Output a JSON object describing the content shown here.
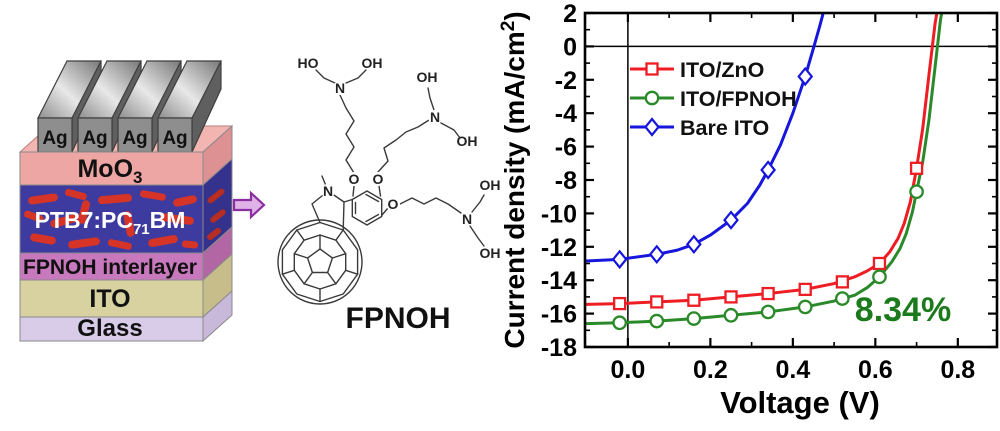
{
  "device": {
    "electrode_label": "Ag",
    "arrow": {
      "fill": "#dfb3e8",
      "stroke": "#8b2fa0"
    },
    "active_blob_color": "#d53426",
    "active_blob_side_color": "#b62d22",
    "ag": {
      "front": "#8e8e8e",
      "bar_light": "#e8e8e8",
      "bar_dark": "#787878",
      "side": "#5f5f5f",
      "outline": "#3f3f3f"
    },
    "layers": [
      {
        "label": "MoO3",
        "parts": [
          "MoO",
          "3"
        ],
        "front": "#eea6a4",
        "side": "#dd9193",
        "top": "#f2b5b2",
        "text_color": "#111111"
      },
      {
        "label": "PTB7:PC71BM",
        "parts": [
          "PTB7:PC",
          "71",
          "BM"
        ],
        "front": "#3d3b9f",
        "side": "#34328c",
        "text_color": "#ffffff"
      },
      {
        "label": "FPNOH interlayer",
        "parts": [
          "FPNOH interlayer"
        ],
        "front": "#c878bd",
        "side": "#b267a4",
        "text_color": "#111111"
      },
      {
        "label": "ITO",
        "parts": [
          "ITO"
        ],
        "front": "#d8d1a0",
        "side": "#c6bd8b",
        "text_color": "#111111"
      },
      {
        "label": "Glass",
        "parts": [
          "Glass"
        ],
        "front": "#d9cce8",
        "side": "#c8b9da",
        "text_color": "#111111"
      }
    ]
  },
  "molecule": {
    "caption": "FPNOH",
    "atoms": {
      "ho": "HO",
      "oh": "OH",
      "n": "N",
      "o": "O"
    }
  },
  "chart_data": {
    "type": "line",
    "title": "",
    "xlabel": "Voltage (V)",
    "ylabel": "Current density (mA/cm2)",
    "ylabel_parts": [
      "Current density (mA/cm",
      "2",
      ")"
    ],
    "xlim": [
      -0.104,
      0.895
    ],
    "ylim": [
      -18,
      2
    ],
    "grid": false,
    "zero_lines": true,
    "legend_position": "upper-left-inside",
    "x_major_ticks": [
      0.0,
      0.2,
      0.4,
      0.6,
      0.8
    ],
    "x_tick_labels": [
      "0.0",
      "0.2",
      "0.4",
      "0.6",
      "0.8"
    ],
    "x_minor_ticks": [
      0.1,
      0.3,
      0.5,
      0.7
    ],
    "y_major_ticks": [
      2,
      0,
      -2,
      -4,
      -6,
      -8,
      -10,
      -12,
      -14,
      -16,
      -18
    ],
    "y_tick_labels": [
      "2",
      "0",
      "-2",
      "-4",
      "-6",
      "-8",
      "-10",
      "-12",
      "-14",
      "-16",
      "-18"
    ],
    "y_minor_ticks": [
      1,
      -1,
      -3,
      -5,
      -7,
      -9,
      -11,
      -13,
      -15,
      -17
    ],
    "annotation": {
      "text": "8.34%",
      "color": "#1b7a1b"
    },
    "axis_color": "#000000",
    "series": [
      {
        "name": "ITO/ZnO",
        "color": "#ee1c23",
        "marker": "square",
        "markers": {
          "x": [
            -0.02,
            0.07,
            0.16,
            0.25,
            0.34,
            0.43,
            0.52,
            0.61,
            0.7
          ],
          "y": [
            -15.4,
            -15.3,
            -15.2,
            -15.0,
            -14.8,
            -14.55,
            -14.1,
            -13.0,
            -7.3
          ]
        },
        "curve": {
          "x": [
            -0.104,
            -0.02,
            0.07,
            0.16,
            0.25,
            0.34,
            0.43,
            0.5,
            0.55,
            0.58,
            0.61,
            0.635,
            0.655,
            0.67,
            0.685,
            0.7,
            0.715,
            0.73,
            0.745,
            0.752
          ],
          "y": [
            -15.45,
            -15.4,
            -15.3,
            -15.2,
            -15.0,
            -14.8,
            -14.55,
            -14.2,
            -13.8,
            -13.45,
            -13.0,
            -12.3,
            -11.5,
            -10.6,
            -9.3,
            -7.3,
            -4.9,
            -1.7,
            1.4,
            2.4
          ]
        }
      },
      {
        "name": "ITO/FPNOH",
        "color": "#2a8a2a",
        "marker": "circle",
        "markers": {
          "x": [
            -0.02,
            0.07,
            0.16,
            0.25,
            0.34,
            0.43,
            0.52,
            0.61,
            0.7
          ],
          "y": [
            -16.55,
            -16.45,
            -16.3,
            -16.1,
            -15.9,
            -15.6,
            -15.1,
            -13.8,
            -8.7
          ]
        },
        "curve": {
          "x": [
            -0.104,
            -0.02,
            0.07,
            0.16,
            0.25,
            0.34,
            0.43,
            0.5,
            0.55,
            0.58,
            0.61,
            0.64,
            0.66,
            0.675,
            0.69,
            0.7,
            0.715,
            0.73,
            0.745,
            0.758,
            0.764
          ],
          "y": [
            -16.6,
            -16.55,
            -16.45,
            -16.3,
            -16.1,
            -15.9,
            -15.6,
            -15.25,
            -14.9,
            -14.45,
            -13.8,
            -12.9,
            -12.1,
            -11.2,
            -9.9,
            -8.7,
            -6.9,
            -4.4,
            -1.2,
            1.6,
            2.4
          ]
        }
      },
      {
        "name": "Bare ITO",
        "color": "#1616dd",
        "marker": "diamond",
        "markers": {
          "x": [
            -0.02,
            0.07,
            0.16,
            0.25,
            0.34,
            0.43
          ],
          "y": [
            -12.75,
            -12.45,
            -11.85,
            -10.4,
            -7.4,
            -1.8
          ]
        },
        "curve": {
          "x": [
            -0.104,
            -0.02,
            0.07,
            0.12,
            0.16,
            0.2,
            0.25,
            0.29,
            0.32,
            0.34,
            0.37,
            0.4,
            0.43,
            0.45,
            0.465,
            0.478
          ],
          "y": [
            -12.85,
            -12.75,
            -12.45,
            -12.2,
            -11.85,
            -11.3,
            -10.4,
            -9.4,
            -8.3,
            -7.4,
            -5.9,
            -4.0,
            -1.8,
            -0.1,
            1.2,
            2.4
          ]
        }
      }
    ]
  }
}
